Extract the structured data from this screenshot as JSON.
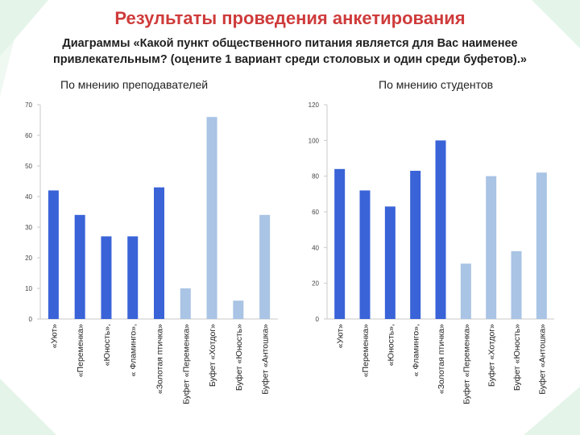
{
  "slide": {
    "title": "Результаты проведения анкетирования",
    "subtitle": "Диаграммы «Какой пункт общественного питания является для Вас наименее привлекательным? (оцените 1 вариант среди столовых и один среди буфетов).»"
  },
  "colors": {
    "canteen_bar": "#3a63d8",
    "buffet_bar": "#a9c4e4",
    "title": "#cf3b3b",
    "axis": "#c8c8c8"
  },
  "chart_data": [
    {
      "type": "bar",
      "title": "По мнению преподавателей",
      "categories": [
        "«Уют»",
        "«Переменка»",
        "«Юность»,",
        "« Фламинго»,",
        "«Золотая птичка»",
        "Буфет «Переменка»",
        "Буфет «Хотдог»",
        "Буфет «Юность»",
        "Буфет «Антошка»"
      ],
      "values": [
        42,
        34,
        27,
        27,
        43,
        10,
        66,
        6,
        34
      ],
      "bar_colors": [
        "canteen",
        "canteen",
        "canteen",
        "canteen",
        "canteen",
        "buffet",
        "buffet",
        "buffet",
        "buffet"
      ],
      "ylim": [
        0,
        70
      ],
      "yticks": [
        0,
        10,
        20,
        30,
        40,
        50,
        60,
        70
      ],
      "grid": false,
      "legend": "none"
    },
    {
      "type": "bar",
      "title": "По мнению студентов",
      "categories": [
        "«Уют»",
        "«Переменка»",
        "«Юность»,",
        "« Фламинго»,",
        "«Золотая птичка»",
        "Буфет «Переменка»",
        "Буфет «Хотдог»",
        "Буфет «Юность»",
        "Буфет «Антошка»"
      ],
      "values": [
        84,
        72,
        63,
        83,
        100,
        31,
        80,
        38,
        82
      ],
      "bar_colors": [
        "canteen",
        "canteen",
        "canteen",
        "canteen",
        "canteen",
        "buffet",
        "buffet",
        "buffet",
        "buffet"
      ],
      "ylim": [
        0,
        120
      ],
      "yticks": [
        0,
        20,
        40,
        60,
        80,
        100,
        120
      ],
      "grid": false,
      "legend": "none"
    }
  ]
}
